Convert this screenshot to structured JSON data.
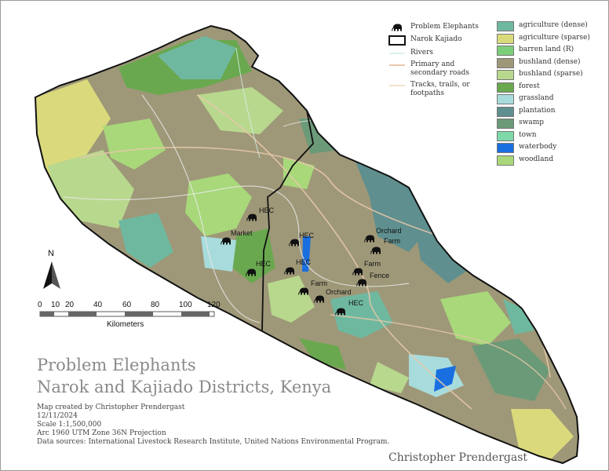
{
  "map": {
    "title_line1": "Problem Elephants",
    "title_line2": "Narok and Kajiado Districts, Kenya",
    "meta": [
      "Map created by Christopher Prendergast",
      "12/11/2024",
      "Scale 1:1,500,000",
      "Arc 1960 UTM Zone 36N Projection",
      "Data sources: International Livestock Research Institute, United Nations Environmental Program."
    ],
    "credit": "Christopher Prendergast",
    "north_label": "N",
    "scale": {
      "ticks": [
        "0",
        "10",
        "20",
        "40",
        "60",
        "80",
        "100",
        "120"
      ],
      "unit": "Kilometers"
    },
    "legend_left": [
      {
        "label": "Problem Elephants",
        "symbol": "elephant-icon"
      },
      {
        "label": "Narok Kajiado",
        "symbol": "boundary"
      },
      {
        "label": "Rivers",
        "symbol": "river"
      },
      {
        "label": "Primary and secondary roads",
        "symbol": "road"
      },
      {
        "label": "Tracks, trails, or footpaths",
        "symbol": "track"
      }
    ],
    "legend_right": [
      {
        "label": "agriculture (dense)",
        "color": "#6fb8a0"
      },
      {
        "label": "agriculture (sparse)",
        "color": "#dada7c"
      },
      {
        "label": "barren land (R)",
        "color": "#7ccf7a"
      },
      {
        "label": "bushland (dense)",
        "color": "#9e9878"
      },
      {
        "label": "bushland (sparse)",
        "color": "#b8d88e"
      },
      {
        "label": "forest",
        "color": "#6aa84f"
      },
      {
        "label": "grassland",
        "color": "#a8dcdc"
      },
      {
        "label": "plantation",
        "color": "#5f8f8f"
      },
      {
        "label": "swamp",
        "color": "#6b9a78"
      },
      {
        "label": "town",
        "color": "#7ed8a8"
      },
      {
        "label": "waterbody",
        "color": "#1a6fe0"
      },
      {
        "label": "woodland",
        "color": "#a8d87a"
      }
    ],
    "places": [
      "HEC",
      "Market",
      "HEC",
      "HEC",
      "HEC",
      "Orchard",
      "Farm",
      "Farm",
      "Fence",
      "Farm",
      "Orchard",
      "HEC"
    ]
  }
}
